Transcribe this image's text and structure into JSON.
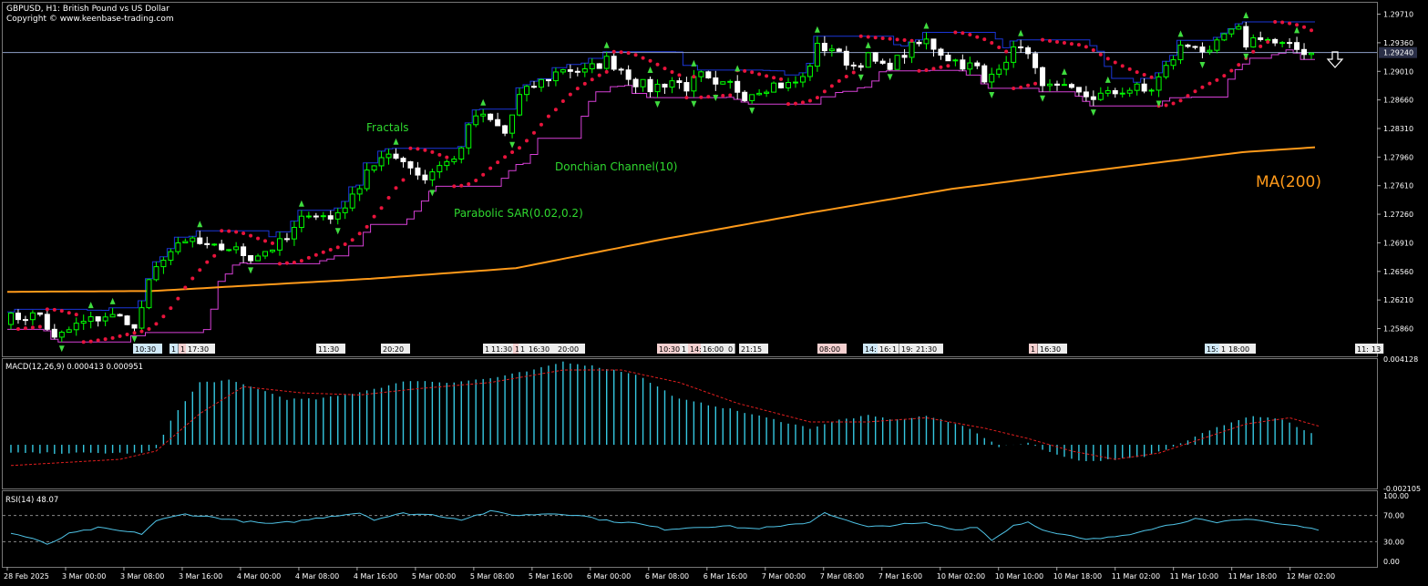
{
  "header": {
    "symbol_line": "GBPUSD, H1:  British Pound vs US Dollar",
    "copyright": "Copyright © www.keenbase-trading.com"
  },
  "colors": {
    "background": "#000000",
    "candle_up": "#00ff00",
    "candle_down": "#ffffff",
    "donchian_upper": "#1a36d8",
    "donchian_lower": "#d640d6",
    "sar": "#e8143c",
    "ma200": "#ff9a1a",
    "fractal": "#3fdc3f",
    "macd_hist": "#35c7e0",
    "macd_signal": "#e01e1e",
    "rsi": "#4fc3e6",
    "annotation": "#2fd82f",
    "ma_label": "#ff9a1a",
    "price_line": "#8fa0c8"
  },
  "annotations": {
    "fractals": "Fractals",
    "donchian": "Donchian Channel(10)",
    "sar": "Parabolic SAR(0.02,0.2)",
    "ma": "MA(200)"
  },
  "signal_icon": "arrow-down-icon",
  "event_labels": [
    {
      "text": "10:30",
      "style": "blue"
    },
    {
      "text": "1",
      "style": "blue"
    },
    {
      "text": "1",
      "style": "red"
    },
    {
      "text": "17:30",
      "style": "plain"
    },
    {
      "text": "11:30",
      "style": "plain"
    },
    {
      "text": "20:20",
      "style": "plain"
    },
    {
      "text": "1",
      "style": "plain"
    },
    {
      "text": "11:30",
      "style": "plain"
    },
    {
      "text": "1",
      "style": "red"
    },
    {
      "text": "1",
      "style": "plain"
    },
    {
      "text": "16:30",
      "style": "plain"
    },
    {
      "text": "20:00",
      "style": "plain"
    },
    {
      "text": "10:30",
      "style": "red"
    },
    {
      "text": "1",
      "style": "plain"
    },
    {
      "text": "14:",
      "style": "red"
    },
    {
      "text": "16:00",
      "style": "plain"
    },
    {
      "text": "0",
      "style": "plain"
    },
    {
      "text": "21:15",
      "style": "plain"
    },
    {
      "text": "08:00",
      "style": "red"
    },
    {
      "text": "14:",
      "style": "blue"
    },
    {
      "text": "16:",
      "style": "plain"
    },
    {
      "text": "1",
      "style": "plain"
    },
    {
      "text": "19:",
      "style": "plain"
    },
    {
      "text": "21:30",
      "style": "plain"
    },
    {
      "text": "1",
      "style": "red"
    },
    {
      "text": "16:30",
      "style": "plain"
    },
    {
      "text": "15:",
      "style": "blue"
    },
    {
      "text": "1",
      "style": "plain"
    },
    {
      "text": "18:00",
      "style": "plain"
    },
    {
      "text": "11:",
      "style": "plain"
    },
    {
      "text": "13",
      "style": "plain"
    }
  ],
  "chart_data": [
    {
      "type": "candlestick",
      "panel": "price",
      "title": "GBPUSD, H1:  British Pound vs US Dollar",
      "ylim": [
        1.2552,
        1.2985
      ],
      "y_ticks": [
        "1.29710",
        "1.29360",
        "1.29010",
        "1.28660",
        "1.28310",
        "1.27960",
        "1.27610",
        "1.27260",
        "1.26910",
        "1.26560",
        "1.26210",
        "1.25860"
      ],
      "current_price": "1.29240",
      "current_price_value": 1.2924,
      "x_ticks": [
        "28 Feb 2025",
        "3 Mar 00:00",
        "3 Mar 08:00",
        "3 Mar 16:00",
        "4 Mar 00:00",
        "4 Mar 08:00",
        "4 Mar 16:00",
        "5 Mar 00:00",
        "5 Mar 08:00",
        "5 Mar 16:00",
        "6 Mar 00:00",
        "6 Mar 08:00",
        "6 Mar 16:00",
        "7 Mar 00:00",
        "7 Mar 08:00",
        "7 Mar 16:00",
        "10 Mar 02:00",
        "10 Mar 10:00",
        "10 Mar 18:00",
        "11 Mar 02:00",
        "11 Mar 10:00",
        "11 Mar 18:00",
        "12 Mar 02:00"
      ],
      "bar_count": 180,
      "close_path": [
        [
          0,
          1.2598
        ],
        [
          5,
          1.2603
        ],
        [
          7,
          1.2572
        ],
        [
          10,
          1.259
        ],
        [
          14,
          1.2602
        ],
        [
          17,
          1.2597
        ],
        [
          18,
          1.2584
        ],
        [
          20,
          1.264
        ],
        [
          22,
          1.2675
        ],
        [
          26,
          1.2695
        ],
        [
          28,
          1.2683
        ],
        [
          31,
          1.2685
        ],
        [
          34,
          1.2674
        ],
        [
          37,
          1.2685
        ],
        [
          39,
          1.2695
        ],
        [
          42,
          1.273
        ],
        [
          45,
          1.272
        ],
        [
          47,
          1.2738
        ],
        [
          48,
          1.2745
        ],
        [
          50,
          1.2782
        ],
        [
          52,
          1.2793
        ],
        [
          55,
          1.2795
        ],
        [
          56,
          1.2784
        ],
        [
          58,
          1.277
        ],
        [
          60,
          1.2788
        ],
        [
          62,
          1.2792
        ],
        [
          64,
          1.283
        ],
        [
          65,
          1.2847
        ],
        [
          67,
          1.284
        ],
        [
          69,
          1.2825
        ],
        [
          71,
          1.287
        ],
        [
          73,
          1.2883
        ],
        [
          75,
          1.2893
        ],
        [
          77,
          1.2905
        ],
        [
          80,
          1.29
        ],
        [
          83,
          1.2915
        ],
        [
          85,
          1.2904
        ],
        [
          87,
          1.2888
        ],
        [
          89,
          1.288
        ],
        [
          92,
          1.289
        ],
        [
          94,
          1.2882
        ],
        [
          96,
          1.2895
        ],
        [
          98,
          1.288
        ],
        [
          100,
          1.2885
        ],
        [
          102,
          1.2872
        ],
        [
          104,
          1.288
        ],
        [
          106,
          1.2885
        ],
        [
          108,
          1.2884
        ],
        [
          110,
          1.2892
        ],
        [
          112,
          1.293
        ],
        [
          114,
          1.293
        ],
        [
          115,
          1.292
        ],
        [
          117,
          1.2908
        ],
        [
          119,
          1.2918
        ],
        [
          121,
          1.2905
        ],
        [
          123,
          1.2915
        ],
        [
          125,
          1.293
        ],
        [
          127,
          1.2938
        ],
        [
          130,
          1.2918
        ],
        [
          132,
          1.291
        ],
        [
          134,
          1.2905
        ],
        [
          135,
          1.2885
        ],
        [
          137,
          1.291
        ],
        [
          139,
          1.2925
        ],
        [
          140,
          1.2935
        ],
        [
          141,
          1.292
        ],
        [
          142,
          1.29
        ],
        [
          144,
          1.288
        ],
        [
          146,
          1.2878
        ],
        [
          148,
          1.2872
        ],
        [
          150,
          1.287
        ],
        [
          152,
          1.2872
        ],
        [
          154,
          1.2878
        ],
        [
          156,
          1.288
        ],
        [
          157,
          1.2876
        ],
        [
          158,
          1.288
        ],
        [
          160,
          1.2905
        ],
        [
          162,
          1.293
        ],
        [
          164,
          1.2935
        ],
        [
          166,
          1.292
        ],
        [
          168,
          1.2945
        ],
        [
          170,
          1.295
        ],
        [
          171,
          1.2935
        ],
        [
          173,
          1.2945
        ],
        [
          175,
          1.2935
        ],
        [
          177,
          1.293
        ],
        [
          178,
          1.2928
        ],
        [
          180,
          1.2924
        ]
      ],
      "overlays": [
        {
          "name": "MA(200)",
          "path": [
            [
              0,
              1.2631
            ],
            [
              20,
              1.2632
            ],
            [
              50,
              1.2647
            ],
            [
              70,
              1.266
            ],
            [
              90,
              1.2695
            ],
            [
              110,
              1.2727
            ],
            [
              130,
              1.2757
            ],
            [
              150,
              1.278
            ],
            [
              170,
              1.2802
            ],
            [
              180,
              1.2808
            ]
          ]
        }
      ]
    },
    {
      "type": "histogram_with_signal",
      "panel": "macd",
      "title": "MACD(12,26,9) 0.000413 0.000951",
      "y_ticks": [
        "0.004128",
        "-0.002105"
      ],
      "ylim": [
        -0.002105,
        0.004128
      ],
      "histogram_path": [
        [
          0,
          -0.0004
        ],
        [
          10,
          -0.0004
        ],
        [
          18,
          -0.0004
        ],
        [
          20,
          -0.0002
        ],
        [
          22,
          0.0012
        ],
        [
          26,
          0.003
        ],
        [
          30,
          0.0031
        ],
        [
          34,
          0.0027
        ],
        [
          38,
          0.0022
        ],
        [
          42,
          0.0022
        ],
        [
          46,
          0.0024
        ],
        [
          50,
          0.0027
        ],
        [
          55,
          0.0031
        ],
        [
          60,
          0.003
        ],
        [
          66,
          0.0032
        ],
        [
          72,
          0.0036
        ],
        [
          76,
          0.004
        ],
        [
          80,
          0.0038
        ],
        [
          86,
          0.0034
        ],
        [
          92,
          0.0022
        ],
        [
          98,
          0.0018
        ],
        [
          104,
          0.0013
        ],
        [
          110,
          0.0008
        ],
        [
          114,
          0.0012
        ],
        [
          118,
          0.0014
        ],
        [
          122,
          0.0012
        ],
        [
          126,
          0.0014
        ],
        [
          132,
          0.0008
        ],
        [
          136,
          -0.0001
        ],
        [
          140,
          0.0001
        ],
        [
          144,
          -0.0005
        ],
        [
          148,
          -0.0008
        ],
        [
          152,
          -0.0007
        ],
        [
          156,
          -0.0006
        ],
        [
          160,
          -0.0001
        ],
        [
          164,
          0.0006
        ],
        [
          168,
          0.0011
        ],
        [
          171,
          0.0014
        ],
        [
          175,
          0.0012
        ],
        [
          180,
          0.0004
        ]
      ],
      "signal_path": [
        [
          0,
          -0.001
        ],
        [
          15,
          -0.0007
        ],
        [
          20,
          -0.0003
        ],
        [
          26,
          0.0015
        ],
        [
          32,
          0.0028
        ],
        [
          40,
          0.0025
        ],
        [
          48,
          0.0024
        ],
        [
          56,
          0.0027
        ],
        [
          66,
          0.003
        ],
        [
          76,
          0.0036
        ],
        [
          84,
          0.0036
        ],
        [
          92,
          0.003
        ],
        [
          100,
          0.002
        ],
        [
          110,
          0.0011
        ],
        [
          118,
          0.0011
        ],
        [
          126,
          0.0013
        ],
        [
          134,
          0.0008
        ],
        [
          140,
          0.0003
        ],
        [
          146,
          -0.0003
        ],
        [
          152,
          -0.0007
        ],
        [
          158,
          -0.0004
        ],
        [
          164,
          0.0003
        ],
        [
          170,
          0.001
        ],
        [
          176,
          0.0013
        ],
        [
          180,
          0.0009
        ]
      ]
    },
    {
      "type": "line",
      "panel": "rsi",
      "title": "RSI(14) 48.07",
      "ylim": [
        0,
        100
      ],
      "y_ticks": [
        "100.00",
        "70.00",
        "30.00",
        "0.00"
      ],
      "levels": [
        70,
        30
      ],
      "values_path": [
        [
          0,
          43
        ],
        [
          3,
          35
        ],
        [
          5,
          25
        ],
        [
          8,
          42
        ],
        [
          12,
          51
        ],
        [
          16,
          45
        ],
        [
          18,
          42
        ],
        [
          20,
          62
        ],
        [
          24,
          72
        ],
        [
          28,
          67
        ],
        [
          32,
          61
        ],
        [
          36,
          57
        ],
        [
          40,
          62
        ],
        [
          44,
          69
        ],
        [
          48,
          74
        ],
        [
          50,
          64
        ],
        [
          54,
          73
        ],
        [
          58,
          71
        ],
        [
          62,
          64
        ],
        [
          66,
          76
        ],
        [
          70,
          70
        ],
        [
          74,
          73
        ],
        [
          78,
          71
        ],
        [
          82,
          62
        ],
        [
          86,
          58
        ],
        [
          90,
          49
        ],
        [
          94,
          52
        ],
        [
          98,
          54
        ],
        [
          102,
          50
        ],
        [
          106,
          53
        ],
        [
          110,
          60
        ],
        [
          112,
          75
        ],
        [
          115,
          62
        ],
        [
          118,
          52
        ],
        [
          122,
          56
        ],
        [
          126,
          58
        ],
        [
          130,
          48
        ],
        [
          133,
          53
        ],
        [
          135,
          32
        ],
        [
          138,
          55
        ],
        [
          140,
          60
        ],
        [
          143,
          44
        ],
        [
          146,
          38
        ],
        [
          148,
          33
        ],
        [
          151,
          36
        ],
        [
          154,
          42
        ],
        [
          156,
          48
        ],
        [
          158,
          52
        ],
        [
          160,
          57
        ],
        [
          163,
          65
        ],
        [
          166,
          58
        ],
        [
          168,
          62
        ],
        [
          171,
          65
        ],
        [
          174,
          58
        ],
        [
          177,
          54
        ],
        [
          180,
          48
        ]
      ]
    }
  ]
}
